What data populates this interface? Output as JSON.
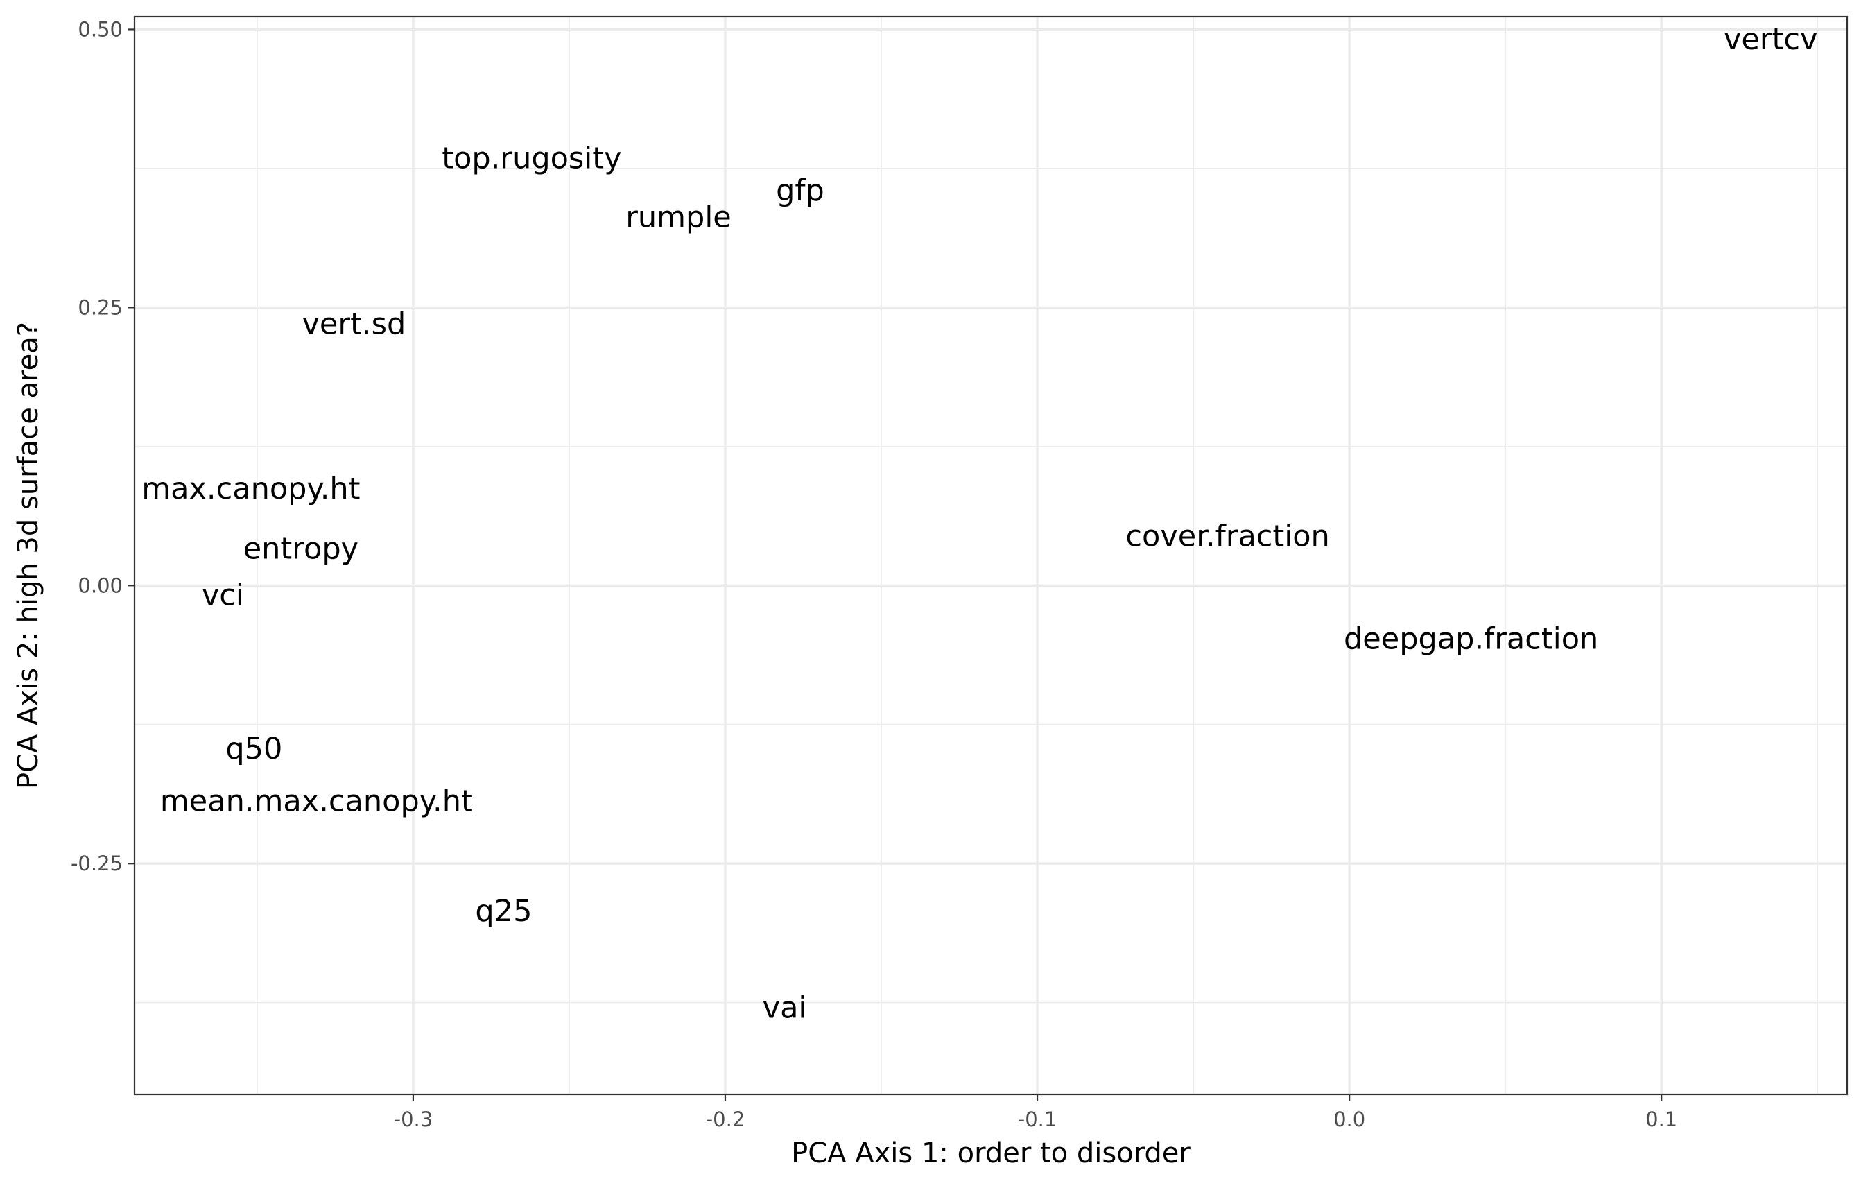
{
  "chart_data": {
    "type": "scatter",
    "title": "",
    "xlabel": "PCA Axis 1: order to disorder",
    "ylabel": "PCA Axis 2: high 3d surface area?",
    "xlim": [
      -0.3893,
      0.1595
    ],
    "ylim": [
      -0.4575,
      0.5115
    ],
    "x_ticks": [
      -0.3,
      -0.2,
      -0.1,
      0.0,
      0.1
    ],
    "x_tick_labels": [
      "-0.3",
      "-0.2",
      "-0.1",
      "0.0",
      "0.1"
    ],
    "y_ticks": [
      -0.25,
      0.0,
      0.25,
      0.5
    ],
    "y_tick_labels": [
      "-0.25",
      "0.00",
      "0.25",
      "0.50"
    ],
    "grid": true,
    "legend": "none",
    "marker": "text-label",
    "points": [
      {
        "label": "vertcv",
        "x": 0.135,
        "y": 0.491
      },
      {
        "label": "top.rugosity",
        "x": -0.262,
        "y": 0.384
      },
      {
        "label": "gfp",
        "x": -0.176,
        "y": 0.355
      },
      {
        "label": "rumple",
        "x": -0.215,
        "y": 0.331
      },
      {
        "label": "vert.sd",
        "x": -0.319,
        "y": 0.235
      },
      {
        "label": "max.canopy.ht",
        "x": -0.352,
        "y": 0.087
      },
      {
        "label": "entropy",
        "x": -0.336,
        "y": 0.033
      },
      {
        "label": "cover.fraction",
        "x": -0.039,
        "y": 0.044
      },
      {
        "label": "vci",
        "x": -0.361,
        "y": -0.009
      },
      {
        "label": "deepgap.fraction",
        "x": 0.039,
        "y": -0.048
      },
      {
        "label": "q50",
        "x": -0.351,
        "y": -0.147
      },
      {
        "label": "mean.max.canopy.ht",
        "x": -0.331,
        "y": -0.194
      },
      {
        "label": "q25",
        "x": -0.271,
        "y": -0.293
      },
      {
        "label": "vai",
        "x": -0.181,
        "y": -0.38
      }
    ]
  }
}
